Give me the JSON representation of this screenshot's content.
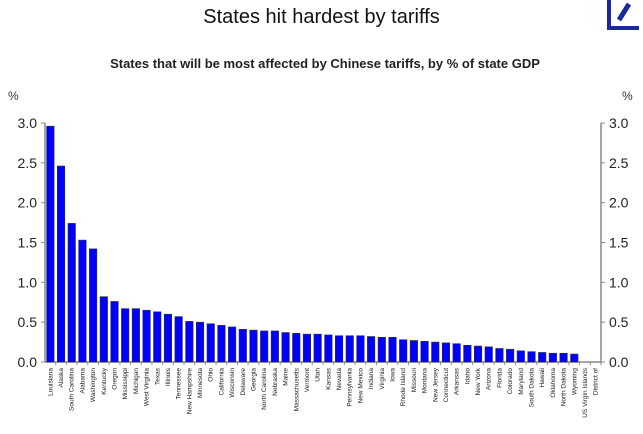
{
  "header": {
    "title": "States hit hardest by tariffs",
    "logo": "deutsche-bank-logo",
    "brand_color": "#1a2a9c"
  },
  "chart_data": {
    "type": "bar",
    "title": "States that will be most affected by Chinese tariffs, by % of state GDP",
    "xlabel": "",
    "ylabel": "%",
    "ylabel_right": "%",
    "ylim": [
      0,
      3.0
    ],
    "yticks": [
      "0.0",
      "0.5",
      "1.0",
      "1.5",
      "2.0",
      "2.5",
      "3.0"
    ],
    "grid": false,
    "legend": "none",
    "bar_color": "#0000ff",
    "categories": [
      "Louisiana",
      "Alaska",
      "South Carolina",
      "Alabama",
      "Washington",
      "Kentucky",
      "Oregon",
      "Mississippi",
      "Michigan",
      "West Virginia",
      "Texas",
      "Illinois",
      "Tennessee",
      "New Hampshire",
      "Minnesota",
      "Ohio",
      "California",
      "Wisconsin",
      "Delaware",
      "Georgia",
      "North Carolina",
      "Nebraska",
      "Maine",
      "Massachusetts",
      "Vermont",
      "Utah",
      "Kansas",
      "Nevada",
      "Pennsylvania",
      "New Mexico",
      "Indiana",
      "Virginia",
      "Iowa",
      "Rhode Island",
      "Missouri",
      "Montana",
      "New Jersey",
      "Connecticut",
      "Arkansas",
      "Idaho",
      "New York",
      "Arizona",
      "Florida",
      "Colorado",
      "Maryland",
      "South Dakota",
      "Hawaii",
      "Oklahoma",
      "North Dakota",
      "Wyoming",
      "US Virgin Islands",
      "District of"
    ],
    "values": [
      2.96,
      2.46,
      1.74,
      1.53,
      1.42,
      0.82,
      0.76,
      0.67,
      0.67,
      0.65,
      0.63,
      0.6,
      0.57,
      0.51,
      0.5,
      0.48,
      0.46,
      0.44,
      0.41,
      0.4,
      0.39,
      0.39,
      0.37,
      0.36,
      0.35,
      0.35,
      0.34,
      0.33,
      0.33,
      0.33,
      0.32,
      0.31,
      0.31,
      0.28,
      0.27,
      0.26,
      0.25,
      0.24,
      0.23,
      0.21,
      0.2,
      0.19,
      0.17,
      0.16,
      0.14,
      0.13,
      0.12,
      0.11,
      0.11,
      0.1,
      0,
      0
    ]
  }
}
